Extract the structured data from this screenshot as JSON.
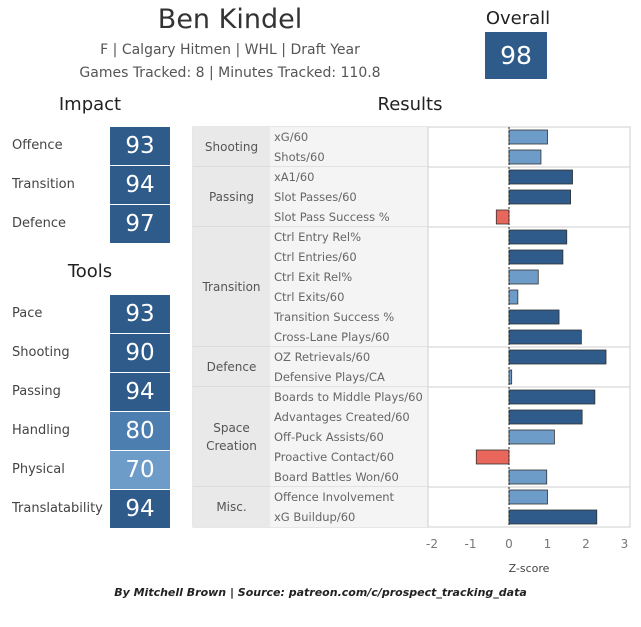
{
  "player": {
    "name": "Ben Kindel",
    "info_line": "F | Calgary Hitmen | WHL | Draft Year",
    "tracking_line": "Games Tracked: 8 | Minutes Tracked: 110.8",
    "overall_label": "Overall",
    "overall_value": "98"
  },
  "impact": {
    "title": "Impact",
    "items": [
      {
        "label": "Offence",
        "value": "93"
      },
      {
        "label": "Transition",
        "value": "94"
      },
      {
        "label": "Defence",
        "value": "97"
      }
    ]
  },
  "tools": {
    "title": "Tools",
    "items": [
      {
        "label": "Pace",
        "value": "93"
      },
      {
        "label": "Shooting",
        "value": "90"
      },
      {
        "label": "Passing",
        "value": "94"
      },
      {
        "label": "Handling",
        "value": "80"
      },
      {
        "label": "Physical",
        "value": "70"
      },
      {
        "label": "Translatability",
        "value": "94"
      }
    ]
  },
  "colors": {
    "dark_blue": "#2e5b8a",
    "mid_blue": "#4d7eb0",
    "light_blue": "#6d9cc9",
    "red": "#e8665a",
    "group_bg": "#e9e9e9"
  },
  "chart_data": {
    "type": "bar",
    "orientation": "horizontal",
    "title": "Results",
    "xlabel": "Z-score",
    "xlim": [
      -2.2,
      3.0
    ],
    "xticks": [
      -2,
      -1,
      0,
      1,
      2,
      3
    ],
    "groups": [
      {
        "name": "Shooting",
        "metrics": [
          {
            "label": "xG/60",
            "value": 1.0
          },
          {
            "label": "Shots/60",
            "value": 0.83
          }
        ]
      },
      {
        "name": "Passing",
        "metrics": [
          {
            "label": "xA1/60",
            "value": 1.65
          },
          {
            "label": "Slot Passes/60",
            "value": 1.6
          },
          {
            "label": "Slot Pass Success %",
            "value": -0.33
          }
        ]
      },
      {
        "name": "Transition",
        "metrics": [
          {
            "label": "Ctrl Entry Rel%",
            "value": 1.5
          },
          {
            "label": "Ctrl Entries/60",
            "value": 1.4
          },
          {
            "label": "Ctrl Exit Rel%",
            "value": 0.76
          },
          {
            "label": "Ctrl Exits/60",
            "value": 0.23
          },
          {
            "label": "Transition Success %",
            "value": 1.3
          },
          {
            "label": "Cross-Lane Plays/60",
            "value": 1.88
          }
        ]
      },
      {
        "name": "Defence",
        "metrics": [
          {
            "label": "OZ Retrievals/60",
            "value": 2.52
          },
          {
            "label": "Defensive Plays/CA",
            "value": 0.07
          }
        ]
      },
      {
        "name": "Space Creation",
        "metrics": [
          {
            "label": "Boards to Middle Plays/60",
            "value": 2.23
          },
          {
            "label": "Advantages Created/60",
            "value": 1.9
          },
          {
            "label": "Off-Puck Assists/60",
            "value": 1.18
          },
          {
            "label": "Proactive Contact/60",
            "value": -0.85
          },
          {
            "label": "Board Battles Won/60",
            "value": 0.98
          }
        ]
      },
      {
        "name": "Misc.",
        "metrics": [
          {
            "label": "Offence Involvement",
            "value": 1.0
          },
          {
            "label": "xG Buildup/60",
            "value": 2.28
          }
        ]
      }
    ]
  },
  "credit": "By Mitchell Brown | Source: patreon.com/c/prospect_tracking_data"
}
